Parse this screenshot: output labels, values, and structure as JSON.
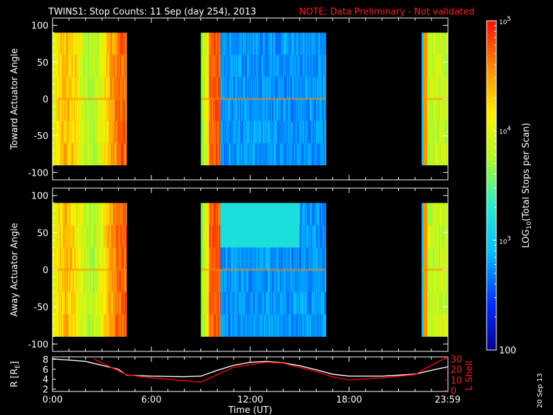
{
  "title": "TWINS1: Stop Counts: 11 Sep (day 254), 2013",
  "note": "NOTE: Data Preliminary - Not validated",
  "date_stamp": "20 Sep 13",
  "colors": {
    "background": "#000000",
    "note": "#ff2020",
    "lshell": "#ff0000",
    "radius": "#ffffff"
  },
  "chart_data": [
    {
      "type": "heatmap",
      "ylabel": "Toward Actuator Angle",
      "ylim": [
        -110,
        110
      ],
      "yticks": [
        "100",
        "50",
        "0",
        "-50",
        "-100"
      ],
      "ytick_values": [
        100,
        50,
        0,
        -50,
        -100
      ],
      "x_range_hours": [
        0,
        24
      ],
      "angle_coverage": [
        -90,
        90
      ],
      "segments": [
        {
          "start": 0.0,
          "end": 4.5,
          "profile": "yellow-orange"
        },
        {
          "start": 9.0,
          "end": 16.6,
          "profile": "orange-blue"
        },
        {
          "start": 22.4,
          "end": 24.0,
          "profile": "gaps-yellow"
        }
      ]
    },
    {
      "type": "heatmap",
      "ylabel": "Away Actuator Angle",
      "ylim": [
        -110,
        110
      ],
      "yticks": [
        "100",
        "50",
        "0",
        "-50",
        "-100"
      ],
      "ytick_values": [
        100,
        50,
        0,
        -50,
        -100
      ],
      "x_range_hours": [
        0,
        24
      ],
      "angle_coverage": [
        -90,
        90
      ],
      "segments": [
        {
          "start": 0.0,
          "end": 4.5,
          "profile": "yellow-orange"
        },
        {
          "start": 9.0,
          "end": 16.6,
          "profile": "orange-blue-cyan-top"
        },
        {
          "start": 22.4,
          "end": 24.0,
          "profile": "gaps-yellow"
        }
      ]
    },
    {
      "type": "line",
      "xlabel": "Time (UT)",
      "xticks": [
        "0:00",
        "6:00",
        "12:00",
        "18:00",
        "23:59"
      ],
      "xtick_hours": [
        0,
        6,
        12,
        18,
        23.983
      ],
      "ylabel_left": "R [R",
      "ylabel_left_sub": "E",
      "ylabel_left_end": "]",
      "ylabel_right": "L Shell",
      "yticks_left": [
        "8",
        "6",
        "4",
        "2"
      ],
      "ylim_left": [
        1.5,
        8.5
      ],
      "yticks_right": [
        "30",
        "20",
        "10",
        "0"
      ],
      "ylim_right": [
        -1,
        32
      ],
      "series": [
        {
          "name": "",
          "axis": "left",
          "x": [
            0,
            2,
            4,
            4.5,
            6,
            8,
            9,
            10,
            11,
            12,
            13,
            14,
            15,
            16,
            17,
            18,
            20,
            22,
            23,
            24
          ],
          "y": [
            8.1,
            7.6,
            6.0,
            4.8,
            4.6,
            4.5,
            4.6,
            5.8,
            6.8,
            7.4,
            7.6,
            7.3,
            6.7,
            5.9,
            5.0,
            4.6,
            4.6,
            5.0,
            5.8,
            6.5
          ]
        },
        {
          "name": "",
          "axis": "right",
          "x": [
            2.5,
            4.5,
            6,
            9,
            11,
            13,
            14,
            15,
            16,
            17,
            18,
            20,
            22,
            23,
            24
          ],
          "y": [
            30,
            15,
            12,
            8,
            22,
            27,
            26,
            22,
            18,
            13,
            10,
            12,
            15,
            24,
            32
          ]
        }
      ]
    }
  ],
  "colorbar": {
    "label": "LOG",
    "label_sub": "10",
    "label_rest": "(Total Stops per Scan)",
    "ticks": [
      {
        "base": "10",
        "exp": "5",
        "value": 5
      },
      {
        "base": "10",
        "exp": "4",
        "value": 4
      },
      {
        "base": "10",
        "exp": "3",
        "value": 3
      },
      {
        "base": "100",
        "exp": "",
        "value": 2
      }
    ],
    "range": [
      2,
      5
    ]
  }
}
